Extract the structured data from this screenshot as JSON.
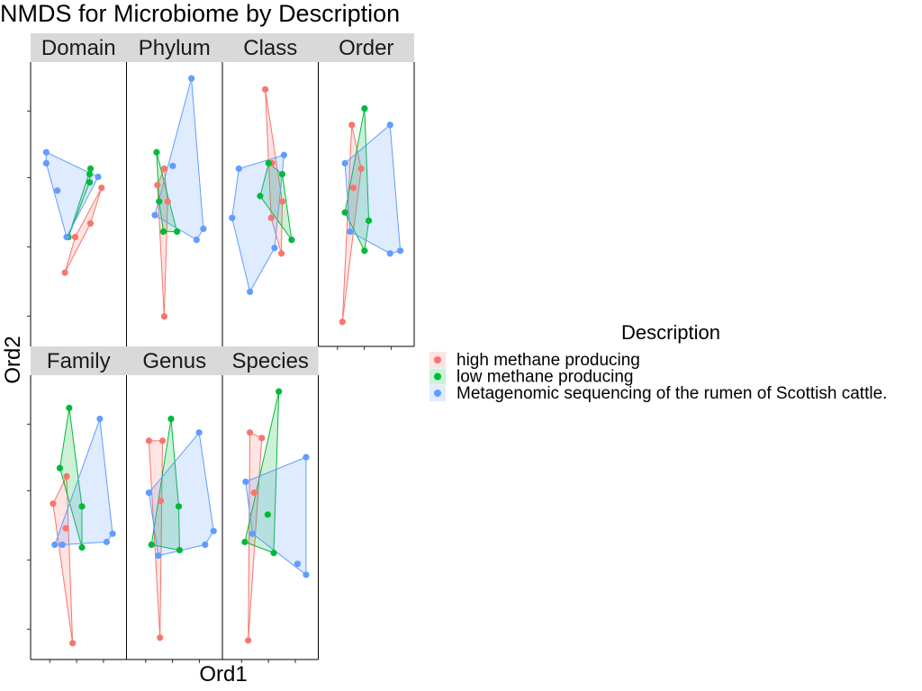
{
  "chart_data": {
    "type": "scatter",
    "title": "NMDS for Microbiome by Description",
    "xlabel": "Ord1",
    "ylabel": "Ord2",
    "facets": [
      "Domain",
      "Phylum",
      "Class",
      "Order",
      "Family",
      "Genus",
      "Species"
    ],
    "x_range": [
      0,
      1
    ],
    "y_range": [
      0,
      1
    ],
    "grid": false,
    "hulls": true,
    "legend": {
      "title": "Description",
      "position": "right",
      "entries": [
        {
          "label": "high methane producing",
          "color": "#F8766D"
        },
        {
          "label": "low methane producing",
          "color": "#00BA38"
        },
        {
          "label": "Metagenomic sequencing of the rumen of Scottish cattle.",
          "color": "#619CFF"
        }
      ]
    },
    "panels": [
      {
        "facet": "Domain",
        "series": [
          {
            "name": "high methane producing",
            "points": [
              [
                0.34,
                0.25
              ],
              [
                0.46,
                0.38
              ],
              [
                0.64,
                0.43
              ],
              [
                0.77,
                0.56
              ]
            ]
          },
          {
            "name": "low methane producing",
            "points": [
              [
                0.38,
                0.38
              ],
              [
                0.63,
                0.58
              ],
              [
                0.63,
                0.61
              ],
              [
                0.64,
                0.63
              ]
            ]
          },
          {
            "name": "Metagenomic sequencing of the rumen of Scottish cattle.",
            "points": [
              [
                0.12,
                0.69
              ],
              [
                0.12,
                0.65
              ],
              [
                0.25,
                0.55
              ],
              [
                0.36,
                0.38
              ],
              [
                0.73,
                0.6
              ]
            ]
          }
        ]
      },
      {
        "facet": "Phylum",
        "series": [
          {
            "name": "high methane producing",
            "points": [
              [
                0.38,
                0.09
              ],
              [
                0.38,
                0.63
              ],
              [
                0.3,
                0.57
              ],
              [
                0.42,
                0.51
              ]
            ]
          },
          {
            "name": "low methane producing",
            "points": [
              [
                0.29,
                0.69
              ],
              [
                0.32,
                0.51
              ],
              [
                0.37,
                0.4
              ],
              [
                0.53,
                0.4
              ]
            ]
          },
          {
            "name": "Metagenomic sequencing of the rumen of Scottish cattle.",
            "points": [
              [
                0.7,
                0.96
              ],
              [
                0.48,
                0.64
              ],
              [
                0.27,
                0.46
              ],
              [
                0.84,
                0.41
              ],
              [
                0.76,
                0.37
              ]
            ]
          }
        ]
      },
      {
        "facet": "Class",
        "series": [
          {
            "name": "high methane producing",
            "points": [
              [
                0.44,
                0.92
              ],
              [
                0.52,
                0.65
              ],
              [
                0.64,
                0.51
              ],
              [
                0.51,
                0.45
              ],
              [
                0.63,
                0.32
              ]
            ]
          },
          {
            "name": "low methane producing",
            "points": [
              [
                0.38,
                0.53
              ],
              [
                0.48,
                0.65
              ],
              [
                0.64,
                0.61
              ],
              [
                0.75,
                0.37
              ]
            ]
          },
          {
            "name": "Metagenomic sequencing of the rumen of Scottish cattle.",
            "points": [
              [
                0.26,
                0.18
              ],
              [
                0.05,
                0.45
              ],
              [
                0.13,
                0.63
              ],
              [
                0.66,
                0.68
              ],
              [
                0.55,
                0.34
              ]
            ]
          }
        ]
      },
      {
        "facet": "Order",
        "series": [
          {
            "name": "high methane producing",
            "points": [
              [
                0.22,
                0.07
              ],
              [
                0.33,
                0.79
              ],
              [
                0.44,
                0.63
              ],
              [
                0.35,
                0.56
              ]
            ]
          },
          {
            "name": "low methane producing",
            "points": [
              [
                0.25,
                0.47
              ],
              [
                0.48,
                0.85
              ],
              [
                0.53,
                0.44
              ],
              [
                0.48,
                0.33
              ]
            ]
          },
          {
            "name": "Metagenomic sequencing of the rumen of Scottish cattle.",
            "points": [
              [
                0.25,
                0.65
              ],
              [
                0.78,
                0.79
              ],
              [
                0.9,
                0.33
              ],
              [
                0.78,
                0.32
              ],
              [
                0.31,
                0.4
              ]
            ]
          }
        ]
      },
      {
        "facet": "Family",
        "series": [
          {
            "name": "high methane producing",
            "points": [
              [
                0.43,
                0.04
              ],
              [
                0.2,
                0.55
              ],
              [
                0.36,
                0.65
              ],
              [
                0.35,
                0.46
              ]
            ]
          },
          {
            "name": "low methane producing",
            "points": [
              [
                0.28,
                0.68
              ],
              [
                0.39,
                0.9
              ],
              [
                0.54,
                0.54
              ],
              [
                0.54,
                0.39
              ]
            ]
          },
          {
            "name": "Metagenomic sequencing of the rumen of Scottish cattle.",
            "points": [
              [
                0.75,
                0.86
              ],
              [
                0.9,
                0.44
              ],
              [
                0.83,
                0.41
              ],
              [
                0.31,
                0.4
              ],
              [
                0.22,
                0.4
              ]
            ]
          }
        ]
      },
      {
        "facet": "Genus",
        "series": [
          {
            "name": "high methane producing",
            "points": [
              [
                0.2,
                0.78
              ],
              [
                0.36,
                0.78
              ],
              [
                0.33,
                0.06
              ],
              [
                0.34,
                0.56
              ]
            ]
          },
          {
            "name": "low methane producing",
            "points": [
              [
                0.46,
                0.86
              ],
              [
                0.55,
                0.54
              ],
              [
                0.56,
                0.38
              ],
              [
                0.23,
                0.4
              ]
            ]
          },
          {
            "name": "Metagenomic sequencing of the rumen of Scottish cattle.",
            "points": [
              [
                0.79,
                0.81
              ],
              [
                0.96,
                0.45
              ],
              [
                0.86,
                0.4
              ],
              [
                0.31,
                0.36
              ],
              [
                0.2,
                0.59
              ]
            ]
          }
        ]
      },
      {
        "facet": "Species",
        "series": [
          {
            "name": "high methane producing",
            "points": [
              [
                0.24,
                0.05
              ],
              [
                0.26,
                0.81
              ],
              [
                0.4,
                0.79
              ],
              [
                0.31,
                0.59
              ]
            ]
          },
          {
            "name": "low methane producing",
            "points": [
              [
                0.6,
                0.96
              ],
              [
                0.47,
                0.51
              ],
              [
                0.54,
                0.37
              ],
              [
                0.2,
                0.41
              ]
            ]
          },
          {
            "name": "Metagenomic sequencing of the rumen of Scottish cattle.",
            "points": [
              [
                0.92,
                0.72
              ],
              [
                0.92,
                0.29
              ],
              [
                0.82,
                0.33
              ],
              [
                0.21,
                0.63
              ],
              [
                0.29,
                0.44
              ]
            ]
          }
        ]
      }
    ]
  }
}
